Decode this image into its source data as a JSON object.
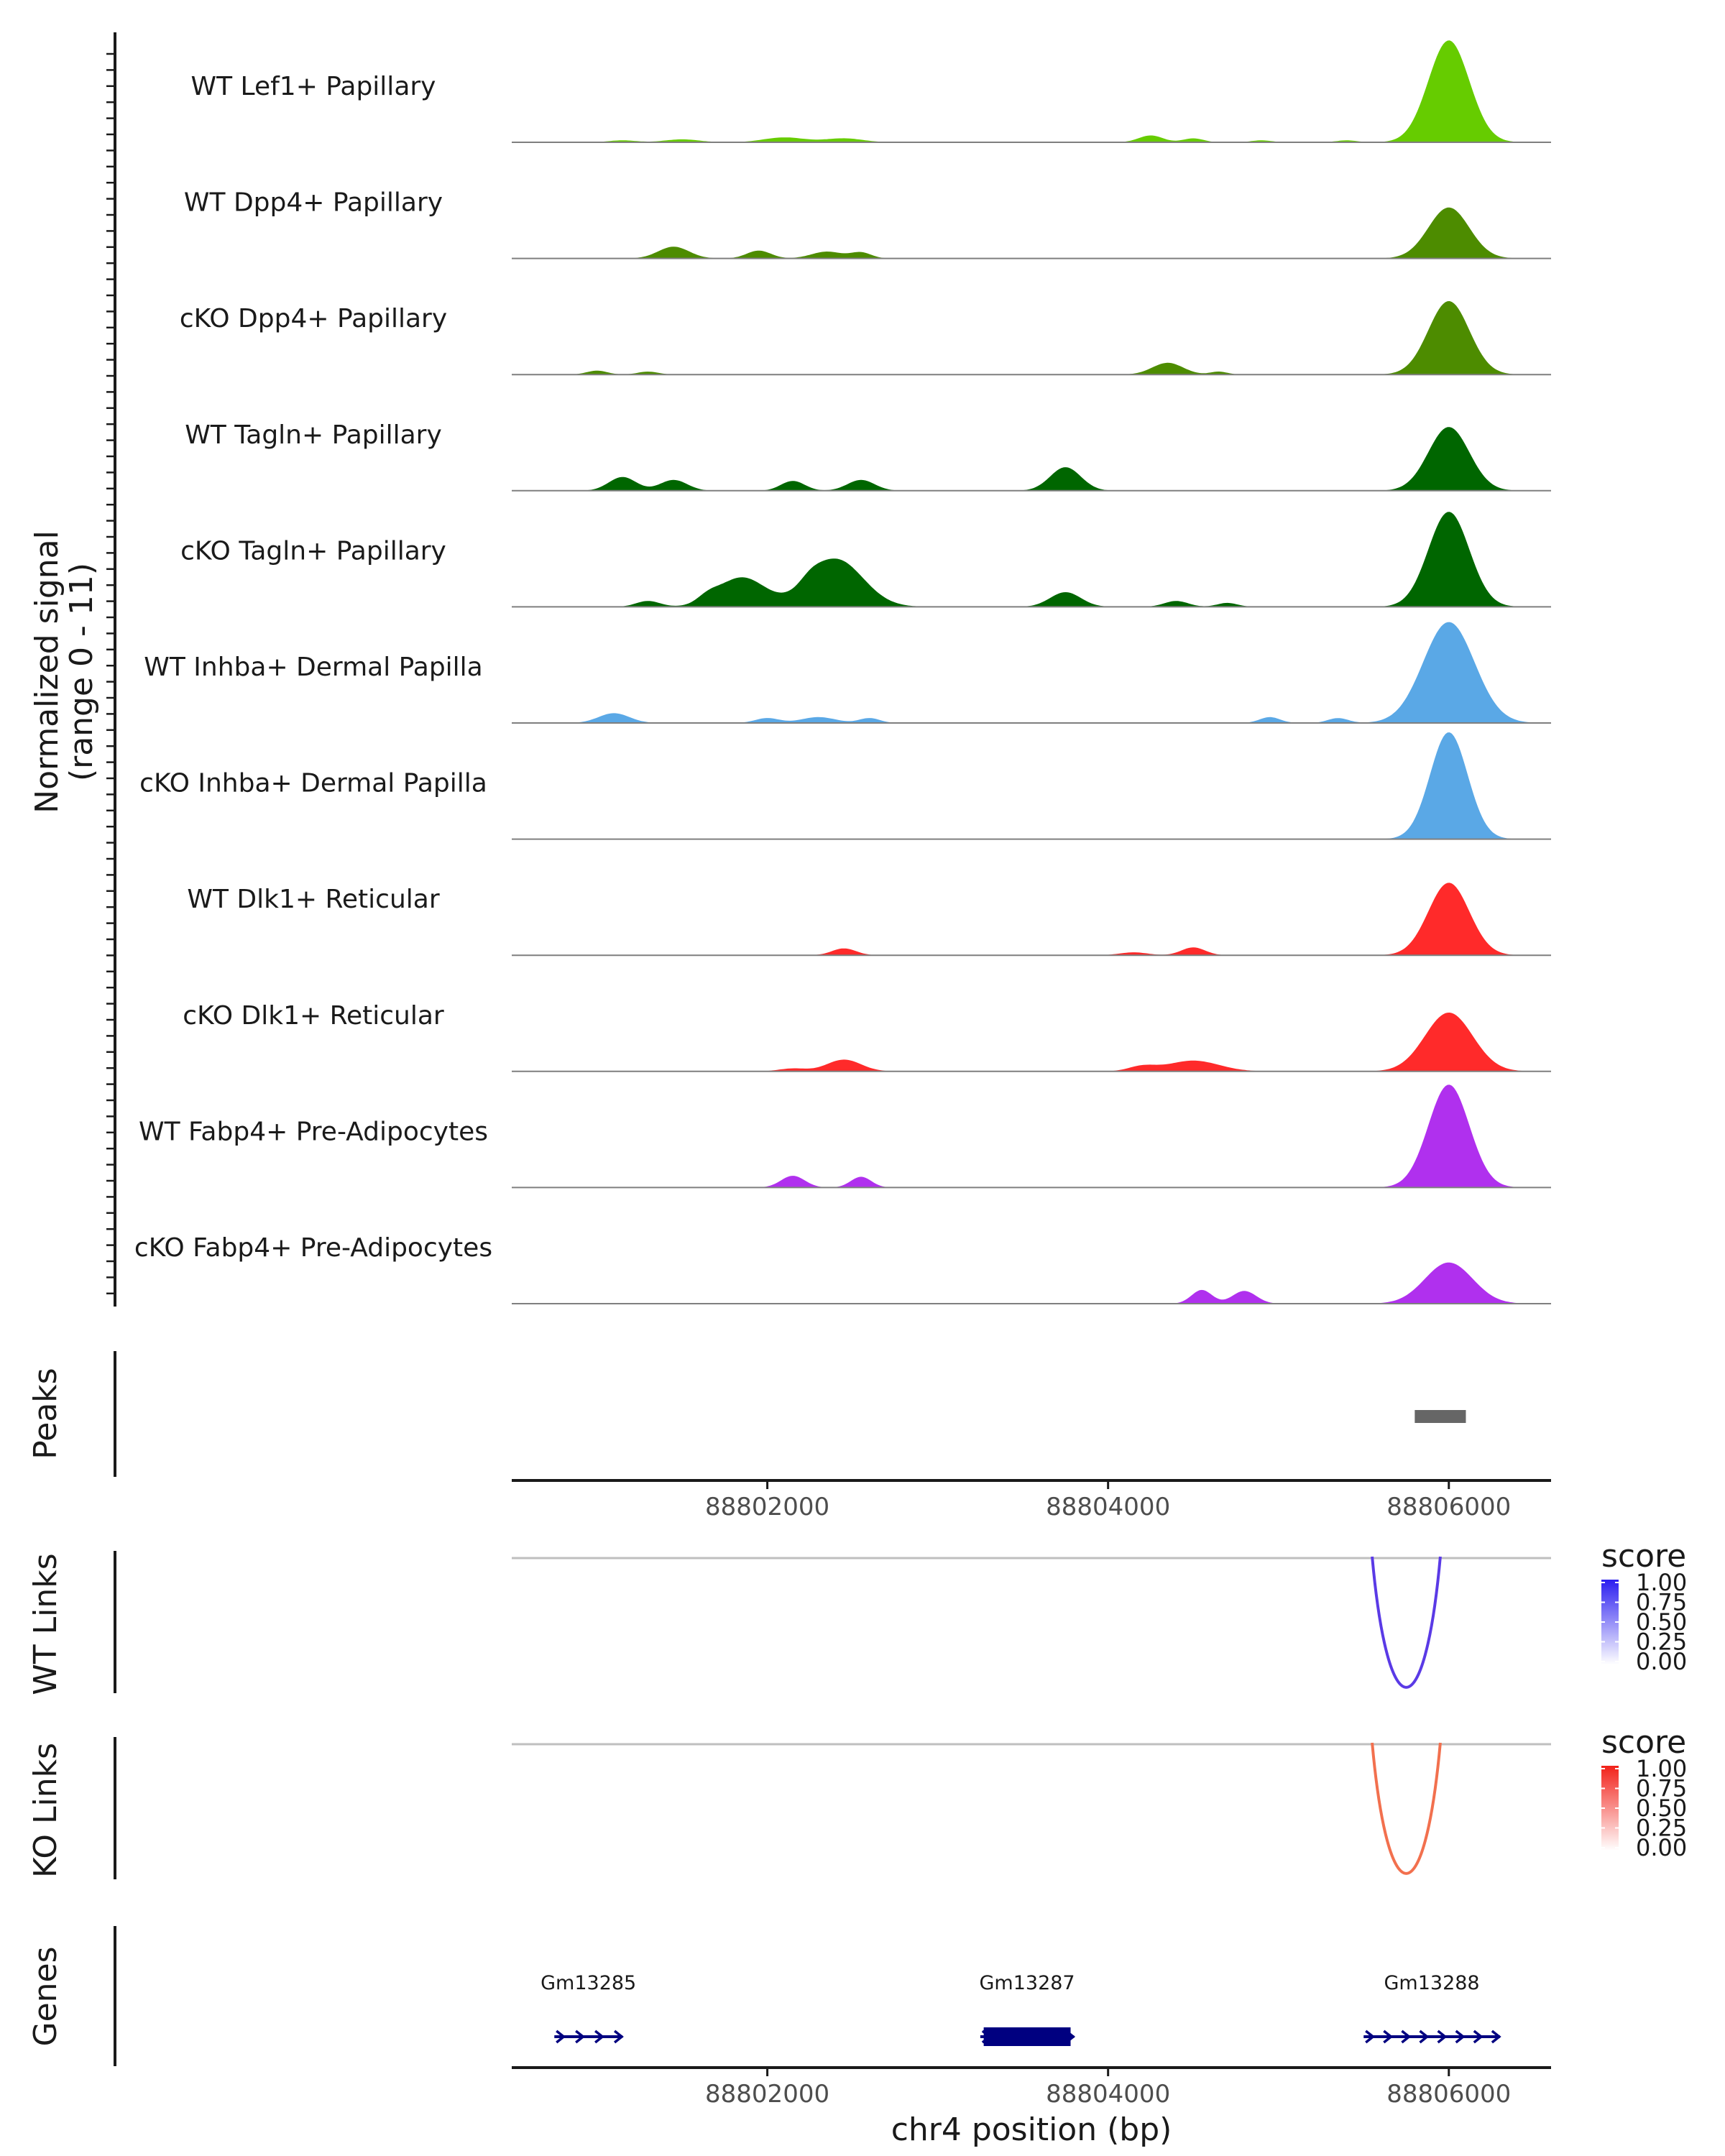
{
  "chart_data": {
    "type": "genome-browser",
    "coverage": {
      "ylabel_line1": "Normalized signal",
      "ylabel_line2": "(range 0 - 11)",
      "ylim": [
        0,
        11
      ],
      "tracks": [
        {
          "name": "WT Lef1+ Papillary",
          "color": "#66cc00",
          "peaks": [
            [
              88806000,
              120,
              10.4
            ],
            [
              88804250,
              70,
              0.7
            ],
            [
              88804500,
              60,
              0.4
            ],
            [
              88801500,
              100,
              0.3
            ],
            [
              88802100,
              120,
              0.5
            ],
            [
              88802450,
              110,
              0.4
            ],
            [
              88801150,
              80,
              0.2
            ],
            [
              88804900,
              60,
              0.2
            ],
            [
              88805400,
              60,
              0.2
            ]
          ]
        },
        {
          "name": "WT Dpp4+ Papillary",
          "color": "#4d8c00",
          "peaks": [
            [
              88806000,
              120,
              5.2
            ],
            [
              88801450,
              90,
              1.2
            ],
            [
              88801950,
              70,
              0.8
            ],
            [
              88802350,
              90,
              0.7
            ],
            [
              88802550,
              60,
              0.6
            ]
          ]
        },
        {
          "name": "cKO Dpp4+ Papillary",
          "color": "#4d8c00",
          "peaks": [
            [
              88806000,
              120,
              7.5
            ],
            [
              88804350,
              90,
              1.2
            ],
            [
              88801000,
              60,
              0.4
            ],
            [
              88801300,
              60,
              0.3
            ],
            [
              88804650,
              50,
              0.3
            ]
          ]
        },
        {
          "name": "WT Tagln+ Papillary",
          "color": "#006600",
          "peaks": [
            [
              88806000,
              120,
              6.5
            ],
            [
              88803750,
              90,
              2.4
            ],
            [
              88801150,
              80,
              1.4
            ],
            [
              88801450,
              80,
              1.1
            ],
            [
              88802150,
              70,
              1.0
            ],
            [
              88802550,
              80,
              1.1
            ]
          ]
        },
        {
          "name": "cKO Tagln+ Papillary",
          "color": "#006600",
          "peaks": [
            [
              88806000,
              120,
              9.7
            ],
            [
              88802400,
              160,
              4.9
            ],
            [
              88801850,
              140,
              3.0
            ],
            [
              88803750,
              90,
              1.5
            ],
            [
              88801300,
              70,
              0.6
            ],
            [
              88801650,
              60,
              0.6
            ],
            [
              88802250,
              60,
              0.6
            ],
            [
              88804400,
              70,
              0.6
            ],
            [
              88804700,
              60,
              0.4
            ]
          ]
        },
        {
          "name": "WT Inhba+ Dermal Papilla",
          "color": "#5aa8e6",
          "peaks": [
            [
              88806000,
              150,
              10.3
            ],
            [
              88801100,
              90,
              1.0
            ],
            [
              88802000,
              70,
              0.5
            ],
            [
              88802300,
              100,
              0.6
            ],
            [
              88802600,
              60,
              0.5
            ],
            [
              88804950,
              60,
              0.6
            ],
            [
              88805350,
              60,
              0.5
            ]
          ]
        },
        {
          "name": "cKO Inhba+ Dermal Papilla",
          "color": "#5aa8e6",
          "peaks": [
            [
              88806000,
              110,
              10.9
            ]
          ]
        },
        {
          "name": "WT Dlk1+ Reticular",
          "color": "#ff2a2a",
          "peaks": [
            [
              88806000,
              120,
              7.4
            ],
            [
              88802450,
              70,
              0.7
            ],
            [
              88804500,
              70,
              0.8
            ],
            [
              88804150,
              80,
              0.3
            ]
          ]
        },
        {
          "name": "cKO Dlk1+ Reticular",
          "color": "#ff2a2a",
          "peaks": [
            [
              88806000,
              140,
              6.0
            ],
            [
              88802450,
              100,
              1.2
            ],
            [
              88804500,
              150,
              1.1
            ],
            [
              88802150,
              80,
              0.3
            ],
            [
              88804200,
              80,
              0.5
            ]
          ]
        },
        {
          "name": "WT Fabp4+ Pre-Adipocytes",
          "color": "#b030ee",
          "peaks": [
            [
              88806000,
              120,
              10.5
            ],
            [
              88802150,
              70,
              1.2
            ],
            [
              88802550,
              60,
              1.1
            ]
          ]
        },
        {
          "name": "cKO Fabp4+ Pre-Adipocytes",
          "color": "#b030ee",
          "peaks": [
            [
              88806000,
              140,
              4.2
            ],
            [
              88804550,
              60,
              1.4
            ],
            [
              88804800,
              70,
              1.3
            ]
          ]
        }
      ]
    },
    "peaks_track": {
      "label": "Peaks",
      "regions": [
        [
          88805800,
          88806100
        ]
      ],
      "color": "#666666"
    },
    "x_axis": {
      "range": [
        88800500,
        88806600
      ],
      "ticks": [
        88802000,
        88804000,
        88806000
      ],
      "tick_labels": [
        "88802000",
        "88804000",
        "88806000"
      ],
      "xlabel": "chr4 position (bp)"
    },
    "links": [
      {
        "label": "WT Links",
        "from": 88805550,
        "to": 88805950,
        "score": 0.8,
        "line_color": "#5a3ae6",
        "legend": {
          "title": "score",
          "ticks": [
            "1.00",
            "0.75",
            "0.50",
            "0.25",
            "0.00"
          ],
          "high": "#2b1ef0",
          "low": "#ffffff"
        }
      },
      {
        "label": "KO Links",
        "from": 88805550,
        "to": 88805950,
        "score": 0.7,
        "line_color": "#f2704e",
        "legend": {
          "title": "score",
          "ticks": [
            "1.00",
            "0.75",
            "0.50",
            "0.25",
            "0.00"
          ],
          "high": "#f2221a",
          "low": "#ffffff"
        }
      }
    ],
    "genes": {
      "label": "Genes",
      "color": "#000080",
      "items": [
        {
          "name": "Gm13285",
          "start": 88800750,
          "end": 88801150,
          "thick": []
        },
        {
          "name": "Gm13287",
          "start": 88803250,
          "end": 88803800,
          "thick": [
            88803270,
            88803780
          ]
        },
        {
          "name": "Gm13288",
          "start": 88805500,
          "end": 88806300,
          "thick": []
        }
      ]
    }
  }
}
